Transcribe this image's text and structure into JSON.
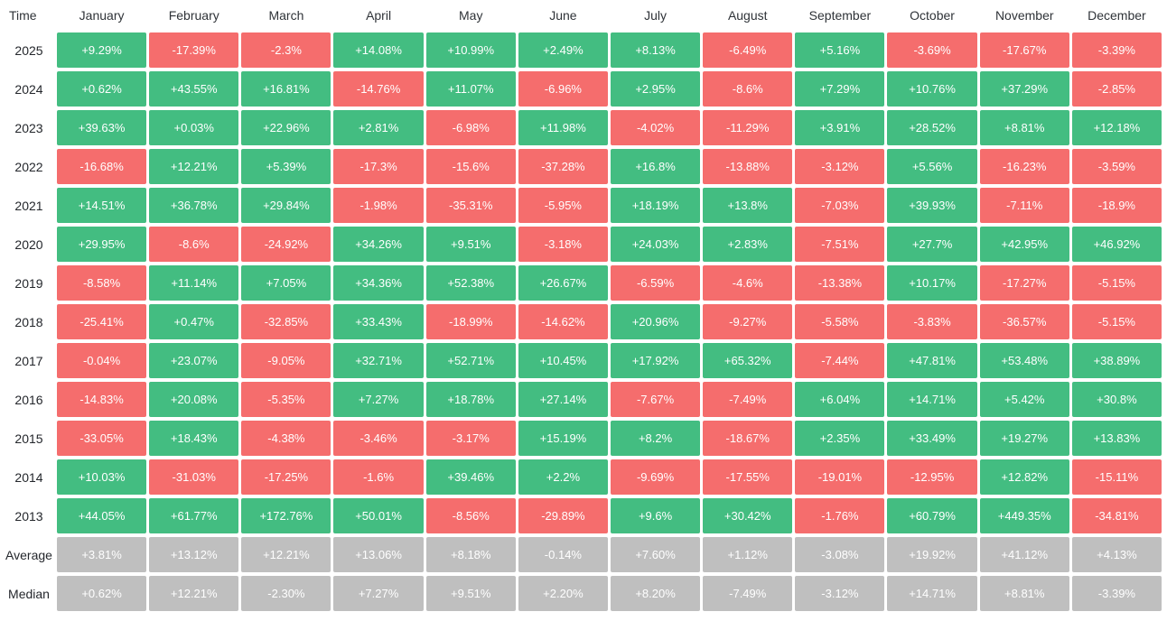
{
  "colors": {
    "positive": "#43bd81",
    "negative": "#f56d6d",
    "neutral": "#bfbfbf",
    "cell_text": "#ffffff",
    "header_text": "#2f3338"
  },
  "table": {
    "corner_label": "Time",
    "months": [
      "January",
      "February",
      "March",
      "April",
      "May",
      "June",
      "July",
      "August",
      "September",
      "October",
      "November",
      "December"
    ],
    "rows": [
      {
        "label": "2025",
        "neutral": false,
        "values": [
          "+9.29%",
          "-17.39%",
          "-2.3%",
          "+14.08%",
          "+10.99%",
          "+2.49%",
          "+8.13%",
          "-6.49%",
          "+5.16%",
          "-3.69%",
          "-17.67%",
          "-3.39%"
        ]
      },
      {
        "label": "2024",
        "neutral": false,
        "values": [
          "+0.62%",
          "+43.55%",
          "+16.81%",
          "-14.76%",
          "+11.07%",
          "-6.96%",
          "+2.95%",
          "-8.6%",
          "+7.29%",
          "+10.76%",
          "+37.29%",
          "-2.85%"
        ]
      },
      {
        "label": "2023",
        "neutral": false,
        "values": [
          "+39.63%",
          "+0.03%",
          "+22.96%",
          "+2.81%",
          "-6.98%",
          "+11.98%",
          "-4.02%",
          "-11.29%",
          "+3.91%",
          "+28.52%",
          "+8.81%",
          "+12.18%"
        ]
      },
      {
        "label": "2022",
        "neutral": false,
        "values": [
          "-16.68%",
          "+12.21%",
          "+5.39%",
          "-17.3%",
          "-15.6%",
          "-37.28%",
          "+16.8%",
          "-13.88%",
          "-3.12%",
          "+5.56%",
          "-16.23%",
          "-3.59%"
        ]
      },
      {
        "label": "2021",
        "neutral": false,
        "values": [
          "+14.51%",
          "+36.78%",
          "+29.84%",
          "-1.98%",
          "-35.31%",
          "-5.95%",
          "+18.19%",
          "+13.8%",
          "-7.03%",
          "+39.93%",
          "-7.11%",
          "-18.9%"
        ]
      },
      {
        "label": "2020",
        "neutral": false,
        "values": [
          "+29.95%",
          "-8.6%",
          "-24.92%",
          "+34.26%",
          "+9.51%",
          "-3.18%",
          "+24.03%",
          "+2.83%",
          "-7.51%",
          "+27.7%",
          "+42.95%",
          "+46.92%"
        ]
      },
      {
        "label": "2019",
        "neutral": false,
        "values": [
          "-8.58%",
          "+11.14%",
          "+7.05%",
          "+34.36%",
          "+52.38%",
          "+26.67%",
          "-6.59%",
          "-4.6%",
          "-13.38%",
          "+10.17%",
          "-17.27%",
          "-5.15%"
        ]
      },
      {
        "label": "2018",
        "neutral": false,
        "values": [
          "-25.41%",
          "+0.47%",
          "-32.85%",
          "+33.43%",
          "-18.99%",
          "-14.62%",
          "+20.96%",
          "-9.27%",
          "-5.58%",
          "-3.83%",
          "-36.57%",
          "-5.15%"
        ]
      },
      {
        "label": "2017",
        "neutral": false,
        "values": [
          "-0.04%",
          "+23.07%",
          "-9.05%",
          "+32.71%",
          "+52.71%",
          "+10.45%",
          "+17.92%",
          "+65.32%",
          "-7.44%",
          "+47.81%",
          "+53.48%",
          "+38.89%"
        ]
      },
      {
        "label": "2016",
        "neutral": false,
        "values": [
          "-14.83%",
          "+20.08%",
          "-5.35%",
          "+7.27%",
          "+18.78%",
          "+27.14%",
          "-7.67%",
          "-7.49%",
          "+6.04%",
          "+14.71%",
          "+5.42%",
          "+30.8%"
        ]
      },
      {
        "label": "2015",
        "neutral": false,
        "values": [
          "-33.05%",
          "+18.43%",
          "-4.38%",
          "-3.46%",
          "-3.17%",
          "+15.19%",
          "+8.2%",
          "-18.67%",
          "+2.35%",
          "+33.49%",
          "+19.27%",
          "+13.83%"
        ]
      },
      {
        "label": "2014",
        "neutral": false,
        "values": [
          "+10.03%",
          "-31.03%",
          "-17.25%",
          "-1.6%",
          "+39.46%",
          "+2.2%",
          "-9.69%",
          "-17.55%",
          "-19.01%",
          "-12.95%",
          "+12.82%",
          "-15.11%"
        ]
      },
      {
        "label": "2013",
        "neutral": false,
        "values": [
          "+44.05%",
          "+61.77%",
          "+172.76%",
          "+50.01%",
          "-8.56%",
          "-29.89%",
          "+9.6%",
          "+30.42%",
          "-1.76%",
          "+60.79%",
          "+449.35%",
          "-34.81%"
        ]
      },
      {
        "label": "Average",
        "neutral": true,
        "values": [
          "+3.81%",
          "+13.12%",
          "+12.21%",
          "+13.06%",
          "+8.18%",
          "-0.14%",
          "+7.60%",
          "+1.12%",
          "-3.08%",
          "+19.92%",
          "+41.12%",
          "+4.13%"
        ]
      },
      {
        "label": "Median",
        "neutral": true,
        "values": [
          "+0.62%",
          "+12.21%",
          "-2.30%",
          "+7.27%",
          "+9.51%",
          "+2.20%",
          "+8.20%",
          "-7.49%",
          "-3.12%",
          "+14.71%",
          "+8.81%",
          "-3.39%"
        ]
      }
    ]
  },
  "chart_data": {
    "type": "heatmap",
    "x_categories": [
      "January",
      "February",
      "March",
      "April",
      "May",
      "June",
      "July",
      "August",
      "September",
      "October",
      "November",
      "December"
    ],
    "y_categories": [
      "2025",
      "2024",
      "2023",
      "2022",
      "2021",
      "2020",
      "2019",
      "2018",
      "2017",
      "2016",
      "2015",
      "2014",
      "2013",
      "Average",
      "Median"
    ],
    "value_unit": "%",
    "series": [
      {
        "name": "2025",
        "values": [
          9.29,
          -17.39,
          -2.3,
          14.08,
          10.99,
          2.49,
          8.13,
          -6.49,
          5.16,
          -3.69,
          -17.67,
          -3.39
        ]
      },
      {
        "name": "2024",
        "values": [
          0.62,
          43.55,
          16.81,
          -14.76,
          11.07,
          -6.96,
          2.95,
          -8.6,
          7.29,
          10.76,
          37.29,
          -2.85
        ]
      },
      {
        "name": "2023",
        "values": [
          39.63,
          0.03,
          22.96,
          2.81,
          -6.98,
          11.98,
          -4.02,
          -11.29,
          3.91,
          28.52,
          8.81,
          12.18
        ]
      },
      {
        "name": "2022",
        "values": [
          -16.68,
          12.21,
          5.39,
          -17.3,
          -15.6,
          -37.28,
          16.8,
          -13.88,
          -3.12,
          5.56,
          -16.23,
          -3.59
        ]
      },
      {
        "name": "2021",
        "values": [
          14.51,
          36.78,
          29.84,
          -1.98,
          -35.31,
          -5.95,
          18.19,
          13.8,
          -7.03,
          39.93,
          -7.11,
          -18.9
        ]
      },
      {
        "name": "2020",
        "values": [
          29.95,
          -8.6,
          -24.92,
          34.26,
          9.51,
          -3.18,
          24.03,
          2.83,
          -7.51,
          27.7,
          42.95,
          46.92
        ]
      },
      {
        "name": "2019",
        "values": [
          -8.58,
          11.14,
          7.05,
          34.36,
          52.38,
          26.67,
          -6.59,
          -4.6,
          -13.38,
          10.17,
          -17.27,
          -5.15
        ]
      },
      {
        "name": "2018",
        "values": [
          -25.41,
          0.47,
          -32.85,
          33.43,
          -18.99,
          -14.62,
          20.96,
          -9.27,
          -5.58,
          -3.83,
          -36.57,
          -5.15
        ]
      },
      {
        "name": "2017",
        "values": [
          -0.04,
          23.07,
          -9.05,
          32.71,
          52.71,
          10.45,
          17.92,
          65.32,
          -7.44,
          47.81,
          53.48,
          38.89
        ]
      },
      {
        "name": "2016",
        "values": [
          -14.83,
          20.08,
          -5.35,
          7.27,
          18.78,
          27.14,
          -7.67,
          -7.49,
          6.04,
          14.71,
          5.42,
          30.8
        ]
      },
      {
        "name": "2015",
        "values": [
          -33.05,
          18.43,
          -4.38,
          -3.46,
          -3.17,
          15.19,
          8.2,
          -18.67,
          2.35,
          33.49,
          19.27,
          13.83
        ]
      },
      {
        "name": "2014",
        "values": [
          10.03,
          -31.03,
          -17.25,
          -1.6,
          39.46,
          2.2,
          -9.69,
          -17.55,
          -19.01,
          -12.95,
          12.82,
          -15.11
        ]
      },
      {
        "name": "2013",
        "values": [
          44.05,
          61.77,
          172.76,
          50.01,
          -8.56,
          -29.89,
          9.6,
          30.42,
          -1.76,
          60.79,
          449.35,
          -34.81
        ]
      },
      {
        "name": "Average",
        "values": [
          3.81,
          13.12,
          12.21,
          13.06,
          8.18,
          -0.14,
          7.6,
          1.12,
          -3.08,
          19.92,
          41.12,
          4.13
        ]
      },
      {
        "name": "Median",
        "values": [
          0.62,
          12.21,
          -2.3,
          7.27,
          9.51,
          2.2,
          8.2,
          -7.49,
          -3.12,
          14.71,
          8.81,
          -3.39
        ]
      }
    ],
    "color_rule": "green if value > 0, red if value < 0, gray for Average/Median rows",
    "legend": "off",
    "grid": "off"
  }
}
